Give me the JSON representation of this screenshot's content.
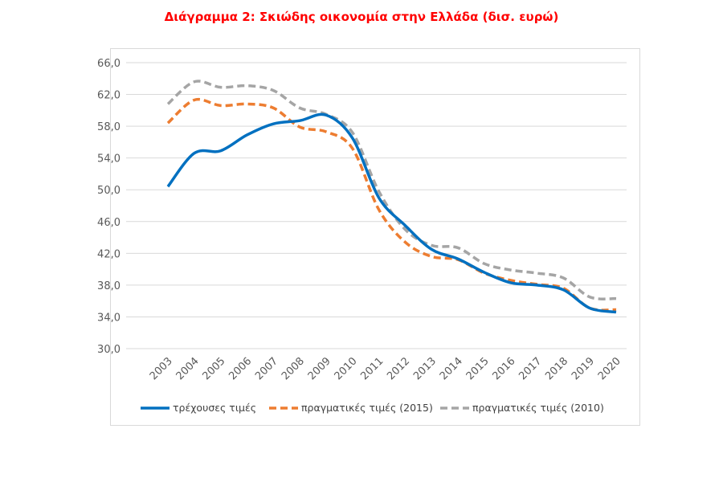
{
  "chart_data": {
    "type": "line",
    "title": "Διάγραμμα 2: Σκιώδης οικονομία στην Ελλάδα (δισ. ευρώ)",
    "xlabel": "",
    "ylabel": "",
    "categories": [
      "2003",
      "2004",
      "2005",
      "2006",
      "2007",
      "2008",
      "2009",
      "2010",
      "2011",
      "2012",
      "2013",
      "2014",
      "2015",
      "2016",
      "2017",
      "2018",
      "2019",
      "2020"
    ],
    "ylim": [
      30,
      66
    ],
    "yticks": [
      "30,0",
      "34,0",
      "38,0",
      "42,0",
      "46,0",
      "50,0",
      "54,0",
      "58,0",
      "62,0",
      "66,0"
    ],
    "grid": "horizontal",
    "legend_position": "bottom",
    "series": [
      {
        "name": "τρέχουσες τιμές",
        "color": "#0070c0",
        "style": "solid",
        "values": [
          50.4,
          54.6,
          54.9,
          56.9,
          58.3,
          58.7,
          59.4,
          56.5,
          49.0,
          45.5,
          42.5,
          41.3,
          39.6,
          38.3,
          38.0,
          37.4,
          35.1,
          34.6
        ]
      },
      {
        "name": "πραγματικές τιμές (2015)",
        "color": "#ed7d31",
        "style": "dashed",
        "values": [
          58.4,
          61.3,
          60.6,
          60.8,
          60.3,
          57.9,
          57.3,
          55.2,
          47.5,
          43.4,
          41.6,
          41.2,
          39.5,
          38.6,
          38.1,
          37.6,
          35.1,
          34.9
        ]
      },
      {
        "name": "πραγματικές τιμές (2010)",
        "color": "#a5a5a5",
        "style": "dashed",
        "values": [
          60.8,
          63.6,
          62.9,
          63.1,
          62.5,
          60.3,
          59.5,
          57.2,
          49.8,
          45.0,
          43.0,
          42.7,
          40.7,
          39.9,
          39.5,
          38.9,
          36.5,
          36.3
        ]
      }
    ]
  }
}
